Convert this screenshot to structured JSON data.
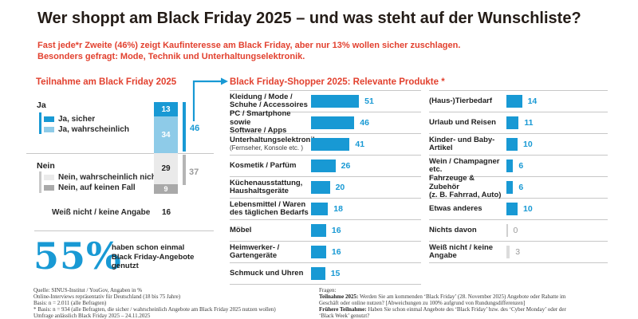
{
  "colors": {
    "accent_blue": "#1899d4",
    "light_blue": "#8ecbe8",
    "seg_light_gray": "#eaeaea",
    "seg_dark_gray": "#a9a9a9",
    "red": "#e2412f",
    "title_color": "#241c17",
    "muted": "#9b9b9b",
    "line": "#c7c7c7"
  },
  "header": {
    "title": "Wer shoppt am Black Friday 2025 – und was steht auf der Wunschliste?",
    "subtitle_line1": "Fast jede*r Zweite (46%) zeigt Kaufinteresse am Black Friday, aber nur 13% wollen sicher zuschlagen.",
    "subtitle_line2": "Besonders gefragt: Mode, Technik und Unterhaltungselektronik."
  },
  "chart_data": [
    {
      "id": "teilnahme",
      "type": "bar",
      "variant": "stacked-column",
      "title": "Teilnahme am Black Friday 2025",
      "unit": "%",
      "segments": [
        {
          "label": "Ja, sicher",
          "value": 13,
          "color": "#1899d4",
          "text_color": "#ffffff"
        },
        {
          "label": "Ja, wahrscheinlich",
          "value": 34,
          "color": "#8ecbe8",
          "text_color": "#ffffff"
        },
        {
          "label": "Nein, wahrscheinlich nicht",
          "value": 29,
          "color": "#eaeaea",
          "text_color": "#222222"
        },
        {
          "label": "Nein, auf keinen Fall",
          "value": 9,
          "color": "#a9a9a9",
          "text_color": "#ffffff"
        }
      ],
      "groups": [
        {
          "label": "Ja",
          "total": 46
        },
        {
          "label": "Nein",
          "total": 37
        }
      ],
      "no_answer": {
        "label": "Weiß nicht / keine Angabe",
        "value": 16
      }
    },
    {
      "id": "produkte",
      "type": "bar",
      "variant": "horizontal",
      "title": "Black Friday-Shopper 2025: Relevante Produkte *",
      "unit": "%",
      "columns": [
        {
          "rows": [
            {
              "lines": [
                "Kleidung / Mode /",
                "Schuhe / Accessoires"
              ],
              "value": 51
            },
            {
              "lines": [
                "PC / Smartphone sowie",
                "Software / Apps"
              ],
              "value": 46
            },
            {
              "lines": [
                "Unterhaltungselektronik"
              ],
              "sub": "(Fernseher, Konsole etc. )",
              "value": 41
            },
            {
              "lines": [
                "Kosmetik / Parfüm"
              ],
              "value": 26
            },
            {
              "lines": [
                "Küchenausstattung,",
                "Haushaltsgeräte"
              ],
              "value": 20
            },
            {
              "lines": [
                "Lebensmittel / Waren",
                "des täglichen Bedarfs"
              ],
              "value": 18
            },
            {
              "lines": [
                "Möbel"
              ],
              "value": 16
            },
            {
              "lines": [
                "Heimwerker- /",
                "Gartengeräte"
              ],
              "value": 16
            },
            {
              "lines": [
                "Schmuck und Uhren"
              ],
              "value": 15
            }
          ]
        },
        {
          "rows": [
            {
              "lines": [
                "(Haus-)Tierbedarf"
              ],
              "value": 14
            },
            {
              "lines": [
                "Urlaub und Reisen"
              ],
              "value": 11
            },
            {
              "lines": [
                "Kinder- und Baby-",
                "Artikel"
              ],
              "value": 10
            },
            {
              "lines": [
                "Wein / Champagner",
                "etc."
              ],
              "value": 6
            },
            {
              "lines": [
                "Fahrzeuge & Zubehör",
                "(z. B. Fahrrad, Auto)"
              ],
              "value": 6
            },
            {
              "lines": [
                "Etwas anderes"
              ],
              "value": 10
            },
            {
              "lines": [
                "Nichts davon"
              ],
              "value": 0,
              "muted": true
            },
            {
              "lines": [
                "Weiß nicht / keine",
                "Angabe"
              ],
              "value": 3,
              "muted": true
            }
          ]
        }
      ]
    }
  ],
  "stat": {
    "value": "55%",
    "caption_lines": [
      "haben schon einmal",
      "Black Friday-Angebote",
      "genutzt"
    ]
  },
  "footnotes_left": [
    {
      "text": "Quelle: SINUS-Institut / YouGov, Angaben in %"
    },
    {
      "text": "Online-Interviews repräsentativ für Deutschland (18 bis 75 Jahre)"
    },
    {
      "text": "Basis: n = 2.011 (alle Befragten)"
    },
    {
      "text": "* Basis: n = 934 (alle Befragten, die sicher / wahrscheinlich Angebote am Black Friday 2025 nutzen wollen)"
    },
    {
      "text": "Umfrage anlässlich Black Friday 2025 – 24.11.2025"
    }
  ],
  "footnotes_right": [
    {
      "text": "Fragen:"
    },
    {
      "lead": "Teilnahme 2025:",
      "text": " Werden Sie am kommenden ‘Black Friday’ (28. November 2025) Angebote oder Rabatte im"
    },
    {
      "text": "Geschäft oder online nutzen? [Abweichungen zu 100% aufgrund von Rundungsdifferenzen]"
    },
    {
      "lead": "Frühere Teilnahme:",
      "text": " Haben Sie schon einmal Angebote des ‘Black Friday’ bzw. des ‘Cyber Monday’ oder der"
    },
    {
      "text": "‘Black Week’ genutzt?"
    }
  ]
}
